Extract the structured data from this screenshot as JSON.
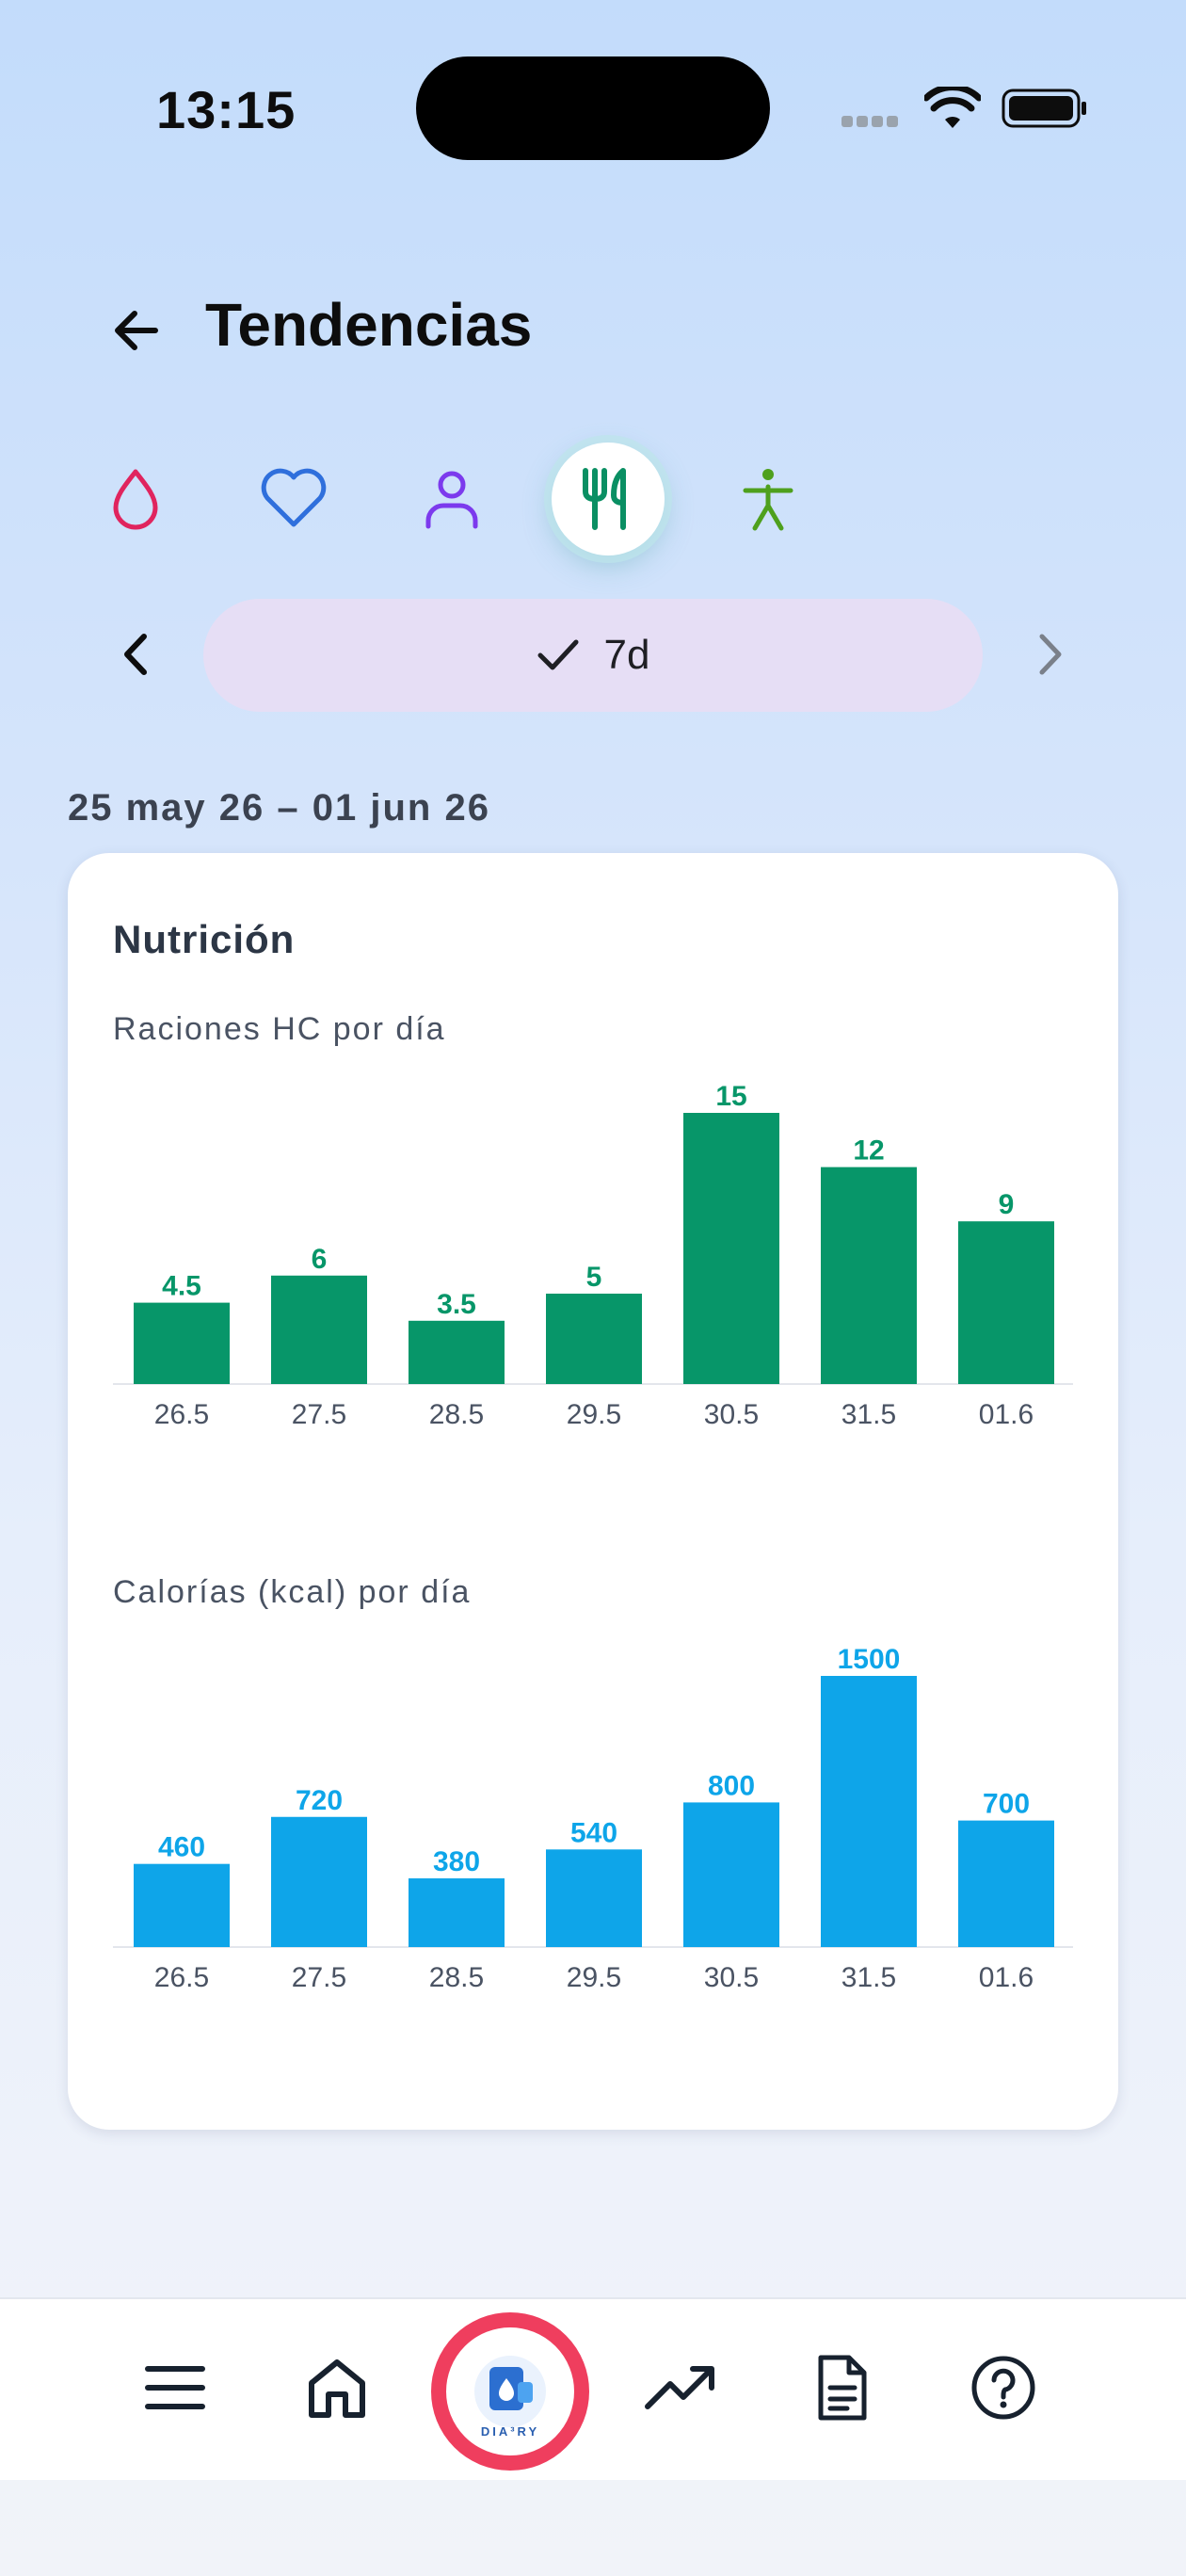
{
  "status_bar": {
    "time": "13:15"
  },
  "header": {
    "title": "Tendencias"
  },
  "categories": [
    {
      "name": "glucose",
      "icon": "drop-icon",
      "color": "#e0245e"
    },
    {
      "name": "heart",
      "icon": "heart-icon",
      "color": "#2f6fdc"
    },
    {
      "name": "weight",
      "icon": "person-icon",
      "color": "#7c3aed"
    },
    {
      "name": "nutrition",
      "icon": "fork-knife-icon",
      "color": "#0a8f63",
      "active": true
    },
    {
      "name": "activity",
      "icon": "figure-icon",
      "color": "#4ea01d"
    }
  ],
  "period": {
    "label": "7d",
    "selected": true
  },
  "date_range": "25 may 26 – 01 jun 26",
  "card": {
    "title": "Nutrición",
    "charts_titles": [
      "Raciones HC por día",
      "Calorías (kcal) por día"
    ]
  },
  "chart_data": [
    {
      "type": "bar",
      "title": "Raciones HC por día",
      "categories": [
        "26.5",
        "27.5",
        "28.5",
        "29.5",
        "30.5",
        "31.5",
        "01.6"
      ],
      "values": [
        4.5,
        6,
        3.5,
        5,
        15,
        12,
        9
      ],
      "value_labels": [
        "4.5",
        "6",
        "3.5",
        "5",
        "15",
        "12",
        "9"
      ],
      "color": "#079669",
      "ylim": [
        0,
        15
      ]
    },
    {
      "type": "bar",
      "title": "Calorías (kcal) por día",
      "categories": [
        "26.5",
        "27.5",
        "28.5",
        "29.5",
        "30.5",
        "31.5",
        "01.6"
      ],
      "values": [
        460,
        720,
        380,
        540,
        800,
        1500,
        700
      ],
      "value_labels": [
        "460",
        "720",
        "380",
        "540",
        "800",
        "1500",
        "700"
      ],
      "color": "#0ea5e9",
      "ylim": [
        0,
        1500
      ]
    }
  ],
  "bottom_nav": {
    "items": [
      "menu",
      "home",
      "diary",
      "trends",
      "reports",
      "help"
    ],
    "logo_text": "DIA³RY",
    "active_color": "#ef3e5e"
  }
}
